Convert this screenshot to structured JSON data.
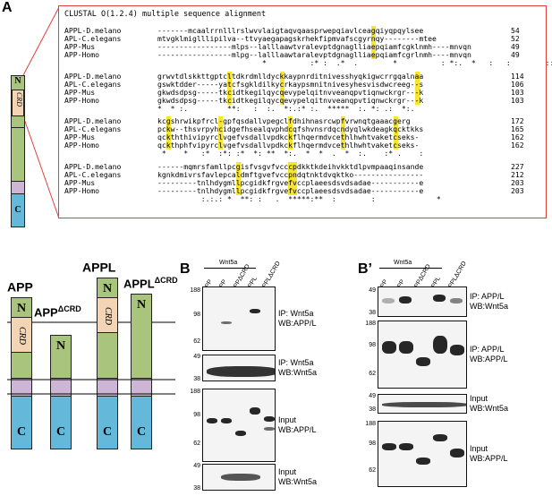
{
  "panels": {
    "A": "A",
    "B": "B",
    "Bp": "B’"
  },
  "alignment": {
    "header": "CLUSTAL O(1.2.4) multiple sequence alignment",
    "blocks": [
      {
        "rows": [
          {
            "name": "APPL-D.melano",
            "seq": "-------mcaalrrnlllrslwvvlaigtaqvqaasprwepqiavlceagqiyqpqylsee",
            "num": "54"
          },
          {
            "name": "APL-C.elegans",
            "seq": "mtvgklmiglllipilva--ttvyaegapagskrhekfipmvafscgyrnqy--------mtee",
            "num": "52"
          },
          {
            "name": "APP-Mus",
            "seq": "-----------------mlps--lalllaawtvralevptdgnaglliaepqiamfcgklnmh----mnvqn",
            "num": "49"
          },
          {
            "name": "APP-Homo",
            "seq": "-----------------mlpg--lalllaawtaralevptdgnaglliaepqiamfcgrlnmh----mnvqn",
            "num": "49"
          }
        ],
        "cons": "                        *          :* :  .*  .        *          : *:.  *   :   :        ::"
      },
      {
        "rows": [
          {
            "name": "APPL-D.melano",
            "seq": "grwvtdlskkttgptcltdkrdmlldyckkaypnrditnivesshyqkigwcrrgqalnaa",
            "num": "114"
          },
          {
            "name": "APL-C.elegans",
            "seq": "gswktdder-----yatcfsgkldilkycrkaypsmnitnivesyhesvisdwcreeg--s",
            "num": "106"
          },
          {
            "name": "APP-Mus",
            "seq": "gkwdsdpsg-----tkcidtkegilqycqevypelqitnvveanqpvtiqnwckrgr---k",
            "num": "103"
          },
          {
            "name": "APP-Homo",
            "seq": "gkwdsdpsg-----tkcidtkegilqycqevypelqitnvveanqpvtiqnwckrgr---k",
            "num": "103"
          }
        ],
        "cons": "*  * :.         **:   :  :.  *:.:* :.  *****  :. *: .:  *:.   "
      },
      {
        "rows": [
          {
            "name": "APPL-D.melano",
            "seq": "kcgshrwikpfrcl-gpfqsdallvpegclfdhihnasrcwpfvrwnqtgaaacgerg",
            "num": "172"
          },
          {
            "name": "APL-C.elegans",
            "seq": "pckw--thsvrpyhcidgefhsealqvphdcqfshvnsrdqcndyqlwkdeagkqcktkks",
            "num": "165"
          },
          {
            "name": "APP-Mus",
            "seq": "qckththivipyrclvgefvsdallvpdkckflhqermdvcethlhwhtvaketcseks-",
            "num": "162"
          },
          {
            "name": "APP-Homo",
            "seq": "qckthphfvipyrclvgefvsdallvpdkckflhqermdvcethlhwhtvaketcseks-",
            "num": "162"
          }
        ],
        "cons": " *    *   :*  :*: :*  *: **  *:.  *  *  .  *  :.    :* .    :"
      },
      {
        "rows": [
          {
            "name": "APPL-D.melano",
            "seq": "------mqmrsfamllpcgisfvsgvfvcccpdkktkdeihvkktdlpvmpaaqinsande",
            "num": "227"
          },
          {
            "name": "APL-C.elegans",
            "seq": "kgnkdmivrsfavlepcaldmftgvefvccpndqtnktdvqktko----------------",
            "num": "212"
          },
          {
            "name": "APP-Mus",
            "seq": "---------tnlhdygmllpcgidkfrgvefvccplaeesdsvdsadae-----------e",
            "num": "203"
          },
          {
            "name": "APP-Homo",
            "seq": "---------tnlhdygmllpcgidkfrgvefvccplaeesdsvdsadae-----------e",
            "num": "203"
          }
        ],
        "cons": "          :.:.: *  **: :   .  *****:**  :        :              *"
      }
    ]
  },
  "domain_labels": {
    "N": "N",
    "C": "C",
    "CRD": "CRD"
  },
  "constructs": [
    {
      "name": "APP",
      "sup": ""
    },
    {
      "name": "APP",
      "sup": "ΔCRD"
    },
    {
      "name": "APPL",
      "sup": ""
    },
    {
      "name": "APPL",
      "sup": "ΔCRD"
    }
  ],
  "blotB": {
    "treatment": "Wnt5a",
    "lanes": [
      "APP",
      "APP",
      "APPΔCRD",
      "APPL",
      "APPLΔCRD"
    ],
    "blots": [
      {
        "mw": [
          "188",
          "98",
          "62"
        ],
        "label": [
          "IP: Wnt5a",
          "WB:APP/L"
        ]
      },
      {
        "mw": [
          "49",
          "38"
        ],
        "label": [
          "IP: Wnt5a",
          "WB:Wnt5a"
        ]
      },
      {
        "mw": [
          "188",
          "98",
          "62"
        ],
        "label": [
          "Input",
          "WB:APP/L"
        ]
      },
      {
        "mw": [
          "49",
          "38"
        ],
        "label": [
          "Input",
          "WB:Wnt5a"
        ]
      }
    ]
  },
  "blotBp": {
    "treatment": "Wnt5a",
    "lanes": [
      "APP",
      "APP",
      "APPΔCRD",
      "APPL",
      "APPLΔCRD"
    ],
    "blots": [
      {
        "mw": [
          "49",
          "38"
        ],
        "label": [
          "IP: APP/L",
          "WB:Wnt5a"
        ]
      },
      {
        "mw": [
          "188",
          "98",
          "62"
        ],
        "label": [
          "IP: APP/L",
          "WB:APP/L"
        ]
      },
      {
        "mw": [
          "49",
          "38"
        ],
        "label": [
          "Input",
          "WB:Wnt5a"
        ]
      },
      {
        "mw": [
          "188",
          "98",
          "62"
        ],
        "label": [
          "Input",
          "WB:APP/L"
        ]
      }
    ]
  }
}
